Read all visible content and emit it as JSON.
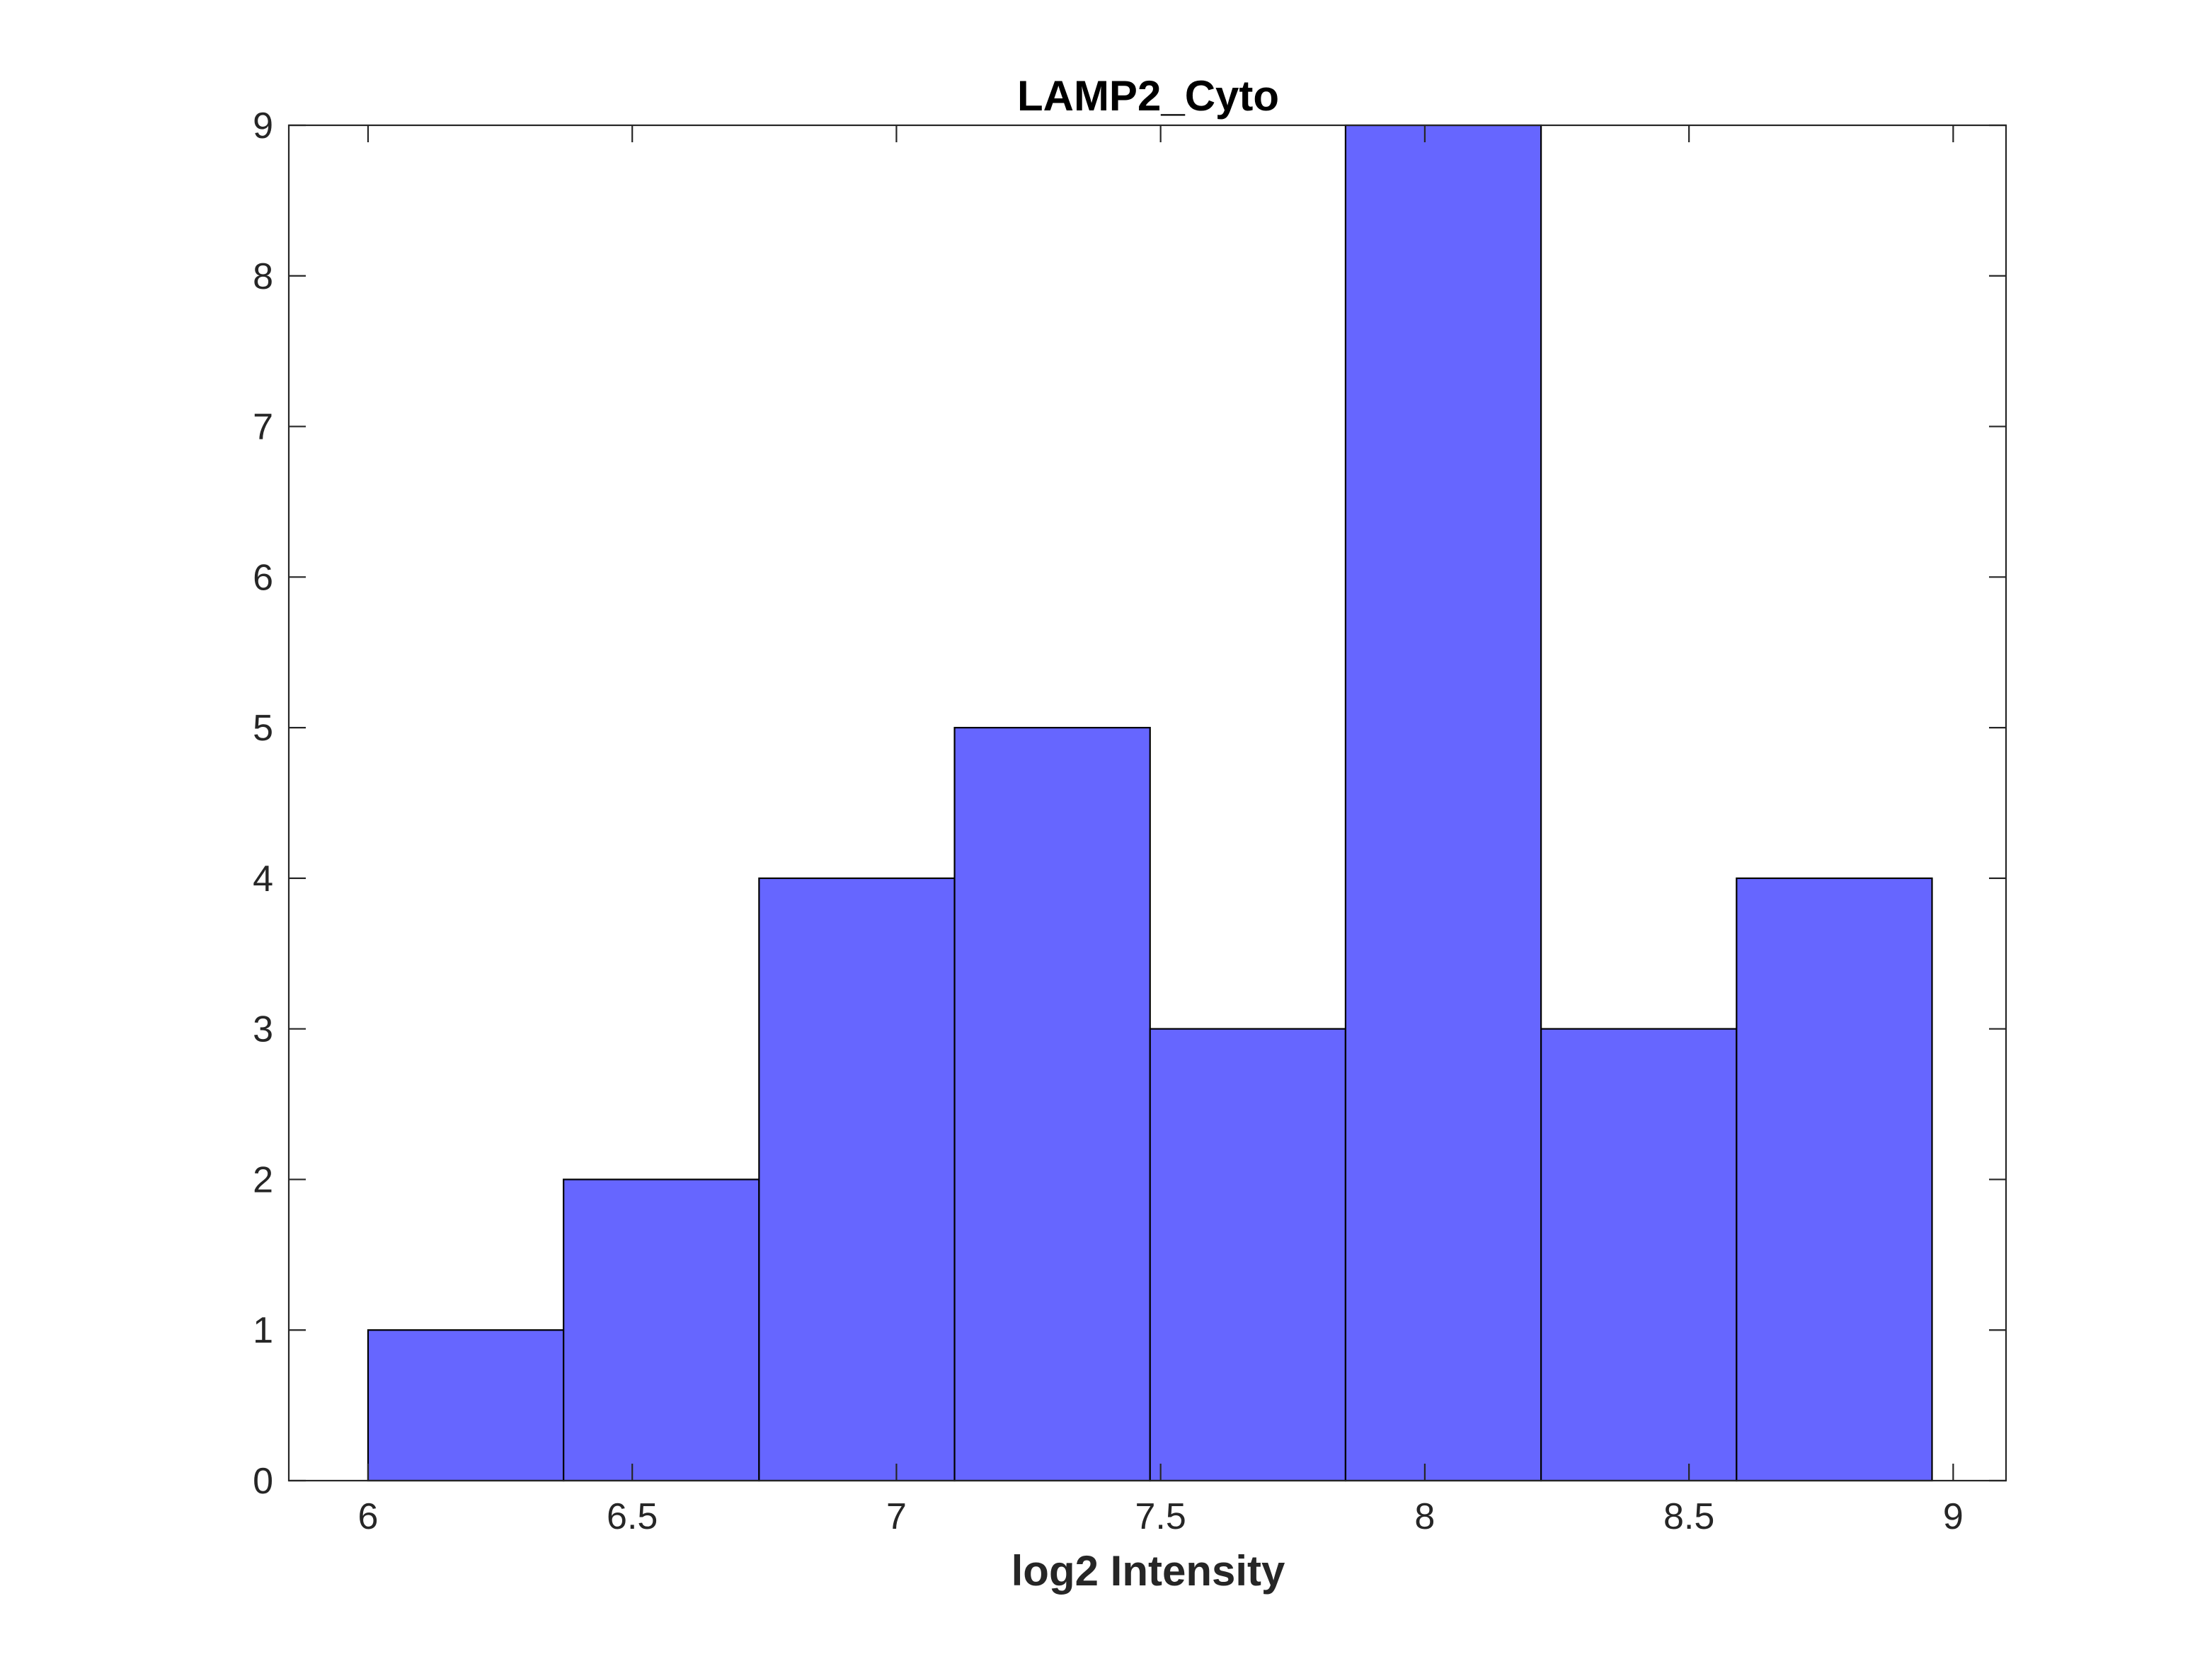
{
  "chart_data": {
    "type": "bar",
    "title": "LAMP2_Cyto",
    "xlabel": "log2 Intensity",
    "ylabel": "",
    "xlim": [
      5.85,
      9.1
    ],
    "ylim": [
      0,
      9
    ],
    "xticks": [
      "6",
      "6.5",
      "7",
      "7.5",
      "8",
      "8.5",
      "9"
    ],
    "yticks": [
      "0",
      "1",
      "2",
      "3",
      "4",
      "5",
      "6",
      "7",
      "8",
      "9"
    ],
    "bin_edges": [
      6.0,
      6.37,
      6.74,
      7.11,
      7.48,
      7.85,
      8.22,
      8.59,
      8.96
    ],
    "values": [
      1,
      2,
      4,
      5,
      3,
      9,
      3,
      4
    ],
    "bar_color": "#6666ff",
    "edge_color": "#000000",
    "grid": false,
    "legend": "none"
  }
}
